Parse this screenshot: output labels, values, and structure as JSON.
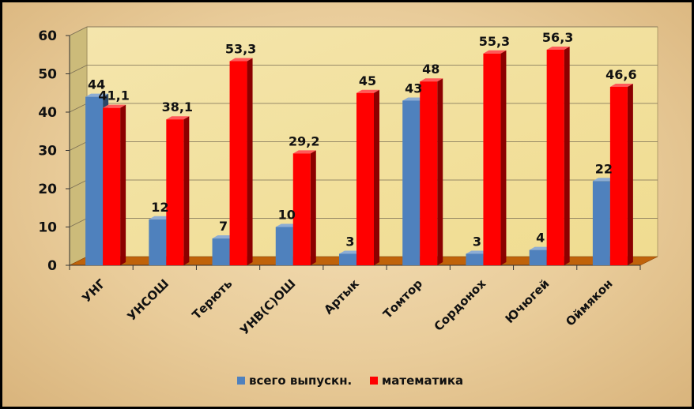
{
  "chart_data": {
    "type": "bar",
    "categories": [
      "УНГ",
      "УНСОШ",
      "Терють",
      "УНВ(С)ОШ",
      "Артык",
      "Томтор",
      "Сордонох",
      "Ючюгей",
      "Оймякон"
    ],
    "series": [
      {
        "name": "всего выпускн.",
        "color": "#4f81bd",
        "values": [
          44,
          12,
          7,
          10,
          3,
          43,
          3,
          4,
          22
        ],
        "labels": [
          "44",
          "12",
          "7",
          "10",
          "3",
          "43",
          "3",
          "4",
          "22"
        ]
      },
      {
        "name": "математика",
        "color": "#ff0000",
        "values": [
          41.1,
          38.1,
          53.3,
          29.2,
          45,
          48,
          55.3,
          56.3,
          46.6
        ],
        "labels": [
          "41,1",
          "38,1",
          "53,3",
          "29,2",
          "45",
          "48",
          "55,3",
          "56,3",
          "46,6"
        ]
      }
    ],
    "y_ticks": [
      "0",
      "10",
      "20",
      "30",
      "40",
      "50",
      "60"
    ],
    "ylim": [
      0,
      60
    ],
    "grid": true,
    "legend_position": "bottom",
    "wall_color": "#f0dc90",
    "floor_color": "#c0630a",
    "title": "",
    "xlabel": "",
    "ylabel": ""
  }
}
